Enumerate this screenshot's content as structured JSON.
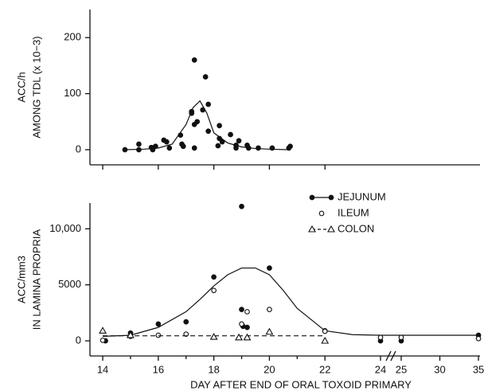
{
  "chart_data": [
    {
      "type": "scatter",
      "ylabel": [
        "ACC/h",
        "AMONG TDL (x 10−3)"
      ],
      "xlim": [
        13.54,
        35.2
      ],
      "xbreak": [
        24,
        25
      ],
      "xticks": [
        14,
        16,
        18,
        20,
        22
      ],
      "ylim": [
        -27,
        250
      ],
      "yticks": [
        0,
        100,
        200
      ],
      "series": [
        {
          "marker": "filled-circle",
          "color": "#111111",
          "x": [
            14.8,
            15.3,
            15.3,
            15.75,
            15.8,
            15.9,
            16.2,
            16.3,
            16.4,
            16.8,
            16.85,
            16.9,
            17.2,
            17.2,
            17.3,
            17.3,
            17.3,
            17.4,
            17.6,
            17.7,
            17.8,
            17.8,
            18.15,
            18.2,
            18.2,
            18.3,
            18.6,
            18.8,
            18.8,
            18.9,
            19.2,
            19.25,
            19.6,
            20.1,
            20.7,
            20.75
          ],
          "values": [
            0,
            0,
            10,
            4,
            0,
            6,
            17,
            14,
            3,
            26,
            10,
            6,
            68,
            65,
            160,
            45,
            3,
            50,
            71,
            130,
            81,
            33,
            7,
            43,
            20,
            14,
            27,
            8,
            3,
            16,
            8,
            3,
            3,
            3,
            3,
            6
          ],
          "fit": {
            "dashed": false,
            "x": [
              14.8,
              15.5,
              16,
              16.5,
              17,
              17.25,
              17.5,
              17.75,
              18,
              18.5,
              19,
              19.5,
              20,
              20.7
            ],
            "values": [
              0,
              1,
              3,
              10,
              45,
              75,
              87,
              65,
              30,
              12,
              5,
              2,
              1,
              0
            ]
          }
        }
      ]
    },
    {
      "type": "scatter",
      "ylabel": [
        "ACC/mm3",
        "IN LAMINA PROPRIA"
      ],
      "xlabel": "DAY AFTER END OF ORAL TOXOID PRIMARY",
      "xlim": [
        13.54,
        35.2
      ],
      "xbreak": [
        24,
        25
      ],
      "xticks": [
        14,
        16,
        18,
        20,
        22,
        24,
        25,
        30,
        35
      ],
      "xminorticks": [
        15,
        17,
        19,
        21
      ],
      "ylim": [
        -1350,
        12300
      ],
      "yticks": [
        0,
        5000,
        {
          "value": 10000,
          "label": "10,000"
        }
      ],
      "series": [
        {
          "name": "JEJUNUM",
          "marker": "filled-circle",
          "color": "#111111",
          "x": [
            14.1,
            15,
            16,
            17,
            18,
            19,
            19,
            19.05,
            19.2,
            20,
            22,
            24,
            25,
            35
          ],
          "values": [
            0,
            700,
            1500,
            1700,
            5700,
            12000,
            2800,
            1300,
            1200,
            6500,
            900,
            0,
            0,
            500
          ],
          "fit": {
            "dashed": false,
            "x": [
              14,
              15,
              16,
              17,
              17.5,
              18,
              18.5,
              19,
              19.5,
              20,
              20.5,
              21,
              22,
              23,
              24,
              25,
              30,
              35
            ],
            "values": [
              400,
              500,
              1200,
              2600,
              3700,
              4900,
              5900,
              6500,
              6500,
              5900,
              4500,
              2900,
              900,
              550,
              500,
              500,
              500,
              500
            ]
          }
        },
        {
          "name": "ILEUM",
          "marker": "open-circle",
          "color": "#111111",
          "x": [
            14,
            15,
            16,
            17,
            18,
            19,
            19.2,
            20,
            22,
            24,
            25,
            35
          ],
          "values": [
            50,
            400,
            500,
            600,
            4500,
            1500,
            2600,
            2800,
            850,
            300,
            300,
            200
          ]
        },
        {
          "name": "COLON",
          "marker": "open-triangle",
          "color": "#111111",
          "x": [
            14,
            15,
            18,
            18.9,
            19.2,
            20,
            22
          ],
          "values": [
            900,
            500,
            350,
            300,
            300,
            800,
            0
          ],
          "fit": {
            "dashed": true,
            "x": [
              14,
              22
            ],
            "values": [
              450,
              450
            ]
          }
        }
      ]
    }
  ]
}
